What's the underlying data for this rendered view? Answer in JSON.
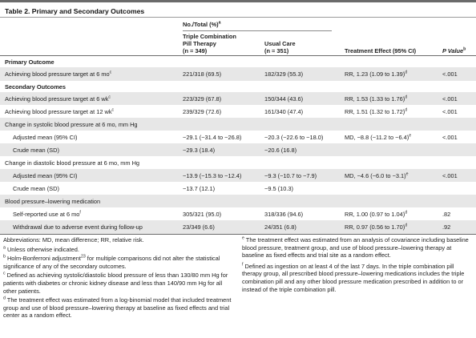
{
  "title": "Table 2. Primary and Secondary Outcomes",
  "header": {
    "no_total": "No./Total (%)",
    "no_total_sup": "a",
    "group1_line1": "Triple Combination",
    "group1_line2": "Pill Therapy",
    "group1_line3": "(n = 349)",
    "group2_line1": "Usual Care",
    "group2_line2": "(n = 351)",
    "treatment_effect": "Treatment Effect (95% CI)",
    "p_value": "P Value",
    "p_value_sup": "b"
  },
  "sections": {
    "primary": "Primary Outcome",
    "secondary": "Secondary Outcomes",
    "systolic": "Change in systolic blood pressure at 6 mo, mm Hg",
    "diastolic": "Change in diastolic blood pressure at 6 mo, mm Hg",
    "lowering": "Blood pressure–lowering medication"
  },
  "rows": {
    "r1": {
      "label": "Achieving blood pressure target at 6 mo",
      "label_sup": "c",
      "g1": "221/318 (69.5)",
      "g2": "182/329 (55.3)",
      "effect": "RR, 1.23 (1.09 to 1.39)",
      "effect_sup": "d",
      "p": "<.001"
    },
    "r2": {
      "label": "Achieving blood pressure target at 6 wk",
      "label_sup": "c",
      "g1": "223/329 (67.8)",
      "g2": "150/344 (43.6)",
      "effect": "RR, 1.53 (1.33 to 1.76)",
      "effect_sup": "d",
      "p": "<.001"
    },
    "r3": {
      "label": "Achieving blood pressure target at 12 wk",
      "label_sup": "c",
      "g1": "239/329 (72.6)",
      "g2": "161/340 (47.4)",
      "effect": "RR, 1.51 (1.32 to 1.72)",
      "effect_sup": "d",
      "p": "<.001"
    },
    "r4": {
      "label": "Adjusted mean (95% CI)",
      "g1": "−29.1 (−31.4 to −26.8)",
      "g2": "−20.3 (−22.6 to −18.0)",
      "effect": "MD, −8.8 (−11.2 to −6.4)",
      "effect_sup": "e",
      "p": "<.001"
    },
    "r5": {
      "label": "Crude mean (SD)",
      "g1": "−29.3 (18.4)",
      "g2": "−20.6 (16.8)"
    },
    "r6": {
      "label": "Adjusted mean (95% CI)",
      "g1": "−13.9 (−15.3 to −12.4)",
      "g2": "−9.3 (−10.7 to −7.9)",
      "effect": "MD, −4.6 (−6.0 to −3.1)",
      "effect_sup": "e",
      "p": "<.001"
    },
    "r7": {
      "label": "Crude mean (SD)",
      "g1": "−13.7 (12.1)",
      "g2": "−9.5 (10.3)"
    },
    "r8": {
      "label": "Self-reported use at 6 mo",
      "label_sup": "f",
      "g1": "305/321 (95.0)",
      "g2": "318/336 (94.6)",
      "effect": "RR, 1.00 (0.97 to 1.04)",
      "effect_sup": "d",
      "p": ".82"
    },
    "r9": {
      "label": "Withdrawal due to adverse event during follow-up",
      "g1": "23/349 (6.6)",
      "g2": "24/351 (6.8)",
      "effect": "RR, 0.97 (0.56 to 1.70)",
      "effect_sup": "d",
      "p": ".92"
    }
  },
  "footnotes": {
    "abbrev": "Abbreviations: MD, mean difference; RR, relative risk.",
    "a_mark": "a",
    "a": " Unless otherwise indicated.",
    "b_mark": "b",
    "b_pre": " Holm-Bonferroni adjustment",
    "b_ref": "23",
    "b_post": " for multiple comparisons did not alter the statistical significance of any of the secondary outcomes.",
    "c_mark": "c",
    "c": " Defined as achieving systolic/diastolic blood pressure of less than 130/80 mm Hg for patients with diabetes or chronic kidney disease and less than 140/90 mm Hg for all other patients.",
    "d_mark": "d",
    "d": " The treatment effect was estimated from a log-binomial model that included treatment group and use of blood pressure–lowering therapy at baseline as fixed effects and trial center as a random effect.",
    "e_mark": "e",
    "e": " The treatment effect was estimated from an analysis of covariance including baseline blood pressure, treatment group, and use of blood pressure–lowering therapy at baseline as fixed effects and trial site as a random effect.",
    "f_mark": "f",
    "f": " Defined as ingestion on at least 4 of the last 7 days. In the triple combination pill therapy group, all prescribed blood pressure–lowering medications includes the triple combination pill and any other blood pressure medication prescribed in addition to or instead of the triple combination pill."
  }
}
